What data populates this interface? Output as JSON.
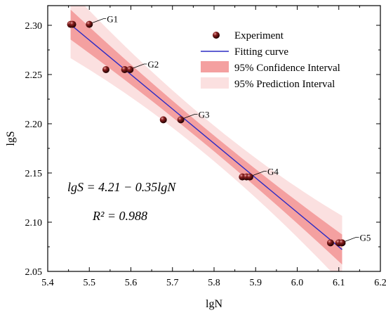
{
  "chart_data": {
    "type": "scatter",
    "xlabel": "lgN",
    "ylabel": "lgS",
    "xlim": [
      5.4,
      6.2
    ],
    "ylim": [
      2.05,
      2.32
    ],
    "x_ticks": [
      "5.4",
      "5.5",
      "5.6",
      "5.7",
      "5.8",
      "5.9",
      "6.0",
      "6.1",
      "6.2"
    ],
    "y_ticks": [
      "2.05",
      "2.10",
      "2.15",
      "2.20",
      "2.25",
      "2.30"
    ],
    "series": [
      {
        "name": "Experiment",
        "points": [
          {
            "x": 5.455,
            "y": 2.301
          },
          {
            "x": 5.46,
            "y": 2.301
          },
          {
            "x": 5.5,
            "y": 2.301
          },
          {
            "x": 5.54,
            "y": 2.255
          },
          {
            "x": 5.585,
            "y": 2.255
          },
          {
            "x": 5.598,
            "y": 2.255
          },
          {
            "x": 5.678,
            "y": 2.204
          },
          {
            "x": 5.72,
            "y": 2.204
          },
          {
            "x": 5.868,
            "y": 2.146
          },
          {
            "x": 5.878,
            "y": 2.146
          },
          {
            "x": 5.886,
            "y": 2.146
          },
          {
            "x": 6.08,
            "y": 2.079
          },
          {
            "x": 6.1,
            "y": 2.079
          },
          {
            "x": 6.108,
            "y": 2.079
          }
        ]
      },
      {
        "name": "Fitting curve",
        "x_range": [
          5.455,
          6.108
        ],
        "intercept": 4.21,
        "slope": -0.35
      },
      {
        "name": "95% Confidence Interval",
        "half_width": 0.008
      },
      {
        "name": "95% Prediction Interval",
        "half_width": 0.018
      }
    ],
    "group_labels": [
      {
        "text": "G1",
        "x": 5.5,
        "y": 2.301
      },
      {
        "text": "G2",
        "x": 5.598,
        "y": 2.255
      },
      {
        "text": "G3",
        "x": 5.72,
        "y": 2.204
      },
      {
        "text": "G4",
        "x": 5.886,
        "y": 2.146
      },
      {
        "text": "G5",
        "x": 6.108,
        "y": 2.079
      }
    ],
    "equation": "lgS = 4.21 − 0.35lgN",
    "r2": "R² = 0.988",
    "legend": [
      "Experiment",
      "Fitting curve",
      "95% Confidence Interval",
      "95% Prediction Interval"
    ],
    "legend_position": "top-right",
    "grid": false,
    "colors": {
      "fit_line": "#2b2bc4",
      "confidence": "#f4a0a0",
      "prediction": "#fbe0e0",
      "point_fill": "#5a0e0e",
      "point_highlight": "#c46a6a"
    }
  }
}
